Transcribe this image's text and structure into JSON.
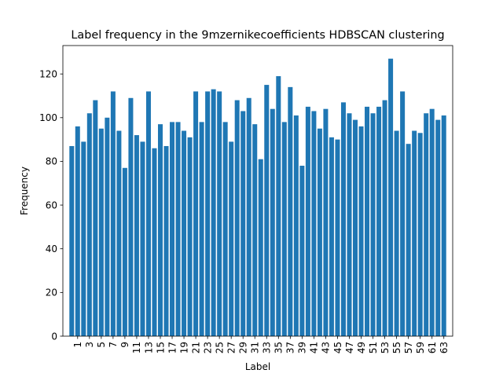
{
  "chart_data": {
    "type": "bar",
    "title": "Label frequency in the 9mzernikecoefficients HDBSCAN clustering",
    "xlabel": "Label",
    "ylabel": "Frequency",
    "ylim": [
      0,
      133
    ],
    "yticks": [
      0,
      20,
      40,
      60,
      80,
      100,
      120
    ],
    "xticks": [
      1,
      3,
      5,
      7,
      9,
      11,
      13,
      15,
      17,
      19,
      21,
      23,
      25,
      27,
      29,
      31,
      33,
      35,
      37,
      39,
      41,
      43,
      45,
      47,
      49,
      51,
      53,
      55,
      57,
      59,
      61,
      63
    ],
    "grid": false,
    "bar_color": "#1f77b4",
    "categories": [
      0,
      1,
      2,
      3,
      4,
      5,
      6,
      7,
      8,
      9,
      10,
      11,
      12,
      13,
      14,
      15,
      16,
      17,
      18,
      19,
      20,
      21,
      22,
      23,
      24,
      25,
      26,
      27,
      28,
      29,
      30,
      31,
      32,
      33,
      34,
      35,
      36,
      37,
      38,
      39,
      40,
      41,
      42,
      43,
      44,
      45,
      46,
      47,
      48,
      49,
      50,
      51,
      52,
      53,
      54,
      55,
      56,
      57,
      58,
      59,
      60,
      61,
      62,
      63
    ],
    "values": [
      87,
      96,
      89,
      102,
      108,
      95,
      100,
      112,
      94,
      77,
      109,
      92,
      89,
      112,
      86,
      97,
      87,
      98,
      98,
      94,
      91,
      112,
      98,
      112,
      113,
      112,
      98,
      89,
      108,
      103,
      109,
      97,
      81,
      115,
      104,
      119,
      98,
      114,
      101,
      78,
      105,
      103,
      95,
      104,
      91,
      90,
      107,
      102,
      99,
      96,
      105,
      102,
      105,
      108,
      127,
      94,
      112,
      88,
      94,
      93,
      102,
      104,
      99,
      101
    ]
  }
}
